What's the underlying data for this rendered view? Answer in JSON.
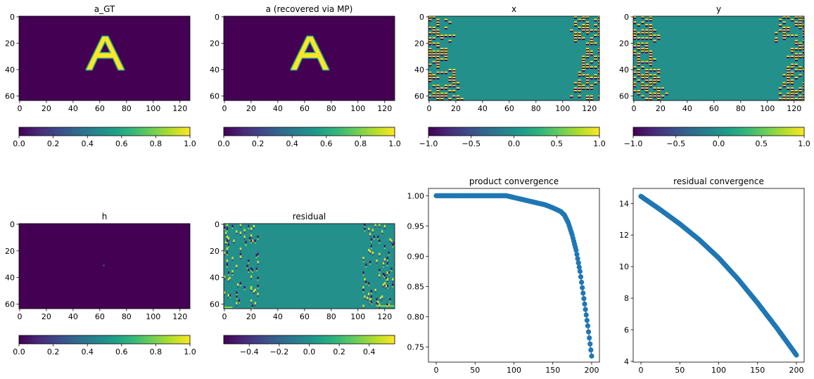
{
  "colors": {
    "viridis": [
      "#440154",
      "#482878",
      "#3e4989",
      "#31688e",
      "#26828e",
      "#1f9e89",
      "#35b779",
      "#6ece58",
      "#b5de2b",
      "#fde725"
    ],
    "series": "#1f77b4"
  },
  "chart_data": [
    {
      "id": "a_gt",
      "type": "heatmap",
      "title": "a_GT",
      "image": "letter_A",
      "xlim": [
        0,
        127
      ],
      "ylim": [
        63,
        0
      ],
      "xticks": [
        "0",
        "20",
        "40",
        "60",
        "80",
        "100",
        "120"
      ],
      "yticks": [
        "0",
        "20",
        "40",
        "60"
      ],
      "colorbar": {
        "range": [
          0,
          1
        ],
        "ticks": [
          "0.0",
          "0.2",
          "0.4",
          "0.6",
          "0.8",
          "1.0"
        ]
      }
    },
    {
      "id": "a_rec",
      "type": "heatmap",
      "title": "a (recovered via MP)",
      "image": "letter_A",
      "xlim": [
        0,
        127
      ],
      "ylim": [
        63,
        0
      ],
      "xticks": [
        "0",
        "20",
        "40",
        "60",
        "80",
        "100",
        "120"
      ],
      "yticks": [
        "0",
        "20",
        "40",
        "60"
      ],
      "colorbar": {
        "range": [
          0,
          1
        ],
        "ticks": [
          "0.0",
          "0.2",
          "0.4",
          "0.6",
          "0.8",
          "1.0"
        ]
      }
    },
    {
      "id": "x",
      "type": "heatmap",
      "title": "x",
      "image": "edge_stripes",
      "xlim": [
        0,
        127
      ],
      "ylim": [
        63,
        0
      ],
      "xticks": [
        "0",
        "20",
        "40",
        "60",
        "80",
        "100",
        "120"
      ],
      "yticks": [
        "0",
        "20",
        "40",
        "60"
      ],
      "colorbar": {
        "range": [
          -1,
          1
        ],
        "ticks": [
          "−1.0",
          "−0.5",
          "0.0",
          "0.5",
          "1.0"
        ]
      }
    },
    {
      "id": "y",
      "type": "heatmap",
      "title": "y",
      "image": "edge_stripes",
      "xlim": [
        0,
        127
      ],
      "ylim": [
        63,
        0
      ],
      "xticks": [
        "0",
        "20",
        "40",
        "60",
        "80",
        "100",
        "120"
      ],
      "yticks": [
        "0",
        "20",
        "40",
        "60"
      ],
      "colorbar": {
        "range": [
          -1,
          1
        ],
        "ticks": [
          "−1.0",
          "−0.5",
          "0.0",
          "0.5",
          "1.0"
        ]
      }
    },
    {
      "id": "h",
      "type": "heatmap",
      "title": "h",
      "image": "single_point",
      "point": [
        63,
        31
      ],
      "xlim": [
        0,
        127
      ],
      "ylim": [
        63,
        0
      ],
      "xticks": [
        "0",
        "20",
        "40",
        "60",
        "80",
        "100",
        "120"
      ],
      "yticks": [
        "0",
        "20",
        "40",
        "60"
      ],
      "colorbar": {
        "range": [
          0,
          1
        ],
        "ticks": [
          "0.0",
          "0.2",
          "0.4",
          "0.6",
          "0.8",
          "1.0"
        ]
      }
    },
    {
      "id": "residual",
      "type": "heatmap",
      "title": "residual",
      "image": "residual_dots",
      "xlim": [
        0,
        127
      ],
      "ylim": [
        63,
        0
      ],
      "xticks": [
        "0",
        "20",
        "40",
        "60",
        "80",
        "100",
        "120"
      ],
      "yticks": [
        "0",
        "20",
        "40",
        "60"
      ],
      "colorbar": {
        "range": [
          -0.57,
          0.57
        ],
        "ticks": [
          "−0.4",
          "−0.2",
          "0.0",
          "0.2",
          "0.4"
        ],
        "tick_values": [
          -0.4,
          -0.2,
          0,
          0.2,
          0.4
        ]
      }
    },
    {
      "id": "product",
      "type": "line",
      "title": "product convergence",
      "markers": true,
      "xlim": [
        -10,
        210
      ],
      "ylim": [
        0.725,
        1.012
      ],
      "xticks": [
        "0",
        "50",
        "100",
        "150",
        "200"
      ],
      "xtick_values": [
        0,
        50,
        100,
        150,
        200
      ],
      "yticks": [
        "0.75",
        "0.80",
        "0.85",
        "0.90",
        "0.95",
        "1.00"
      ],
      "ytick_values": [
        0.75,
        0.8,
        0.85,
        0.9,
        0.95,
        1.0
      ],
      "x_range": [
        0,
        200
      ],
      "points": [
        [
          0,
          1.0
        ],
        [
          90,
          1.0
        ],
        [
          100,
          0.997
        ],
        [
          110,
          0.994
        ],
        [
          120,
          0.991
        ],
        [
          130,
          0.988
        ],
        [
          140,
          0.985
        ],
        [
          150,
          0.98
        ],
        [
          155,
          0.977
        ],
        [
          160,
          0.974
        ],
        [
          165,
          0.968
        ],
        [
          170,
          0.955
        ],
        [
          175,
          0.935
        ],
        [
          180,
          0.91
        ],
        [
          185,
          0.875
        ],
        [
          190,
          0.83
        ],
        [
          195,
          0.785
        ],
        [
          200,
          0.735
        ]
      ]
    },
    {
      "id": "residual_conv",
      "type": "line",
      "title": "residual convergence",
      "markers": true,
      "xlim": [
        -10,
        210
      ],
      "ylim": [
        3.95,
        14.95
      ],
      "xticks": [
        "0",
        "50",
        "100",
        "150",
        "200"
      ],
      "xtick_values": [
        0,
        50,
        100,
        150,
        200
      ],
      "yticks": [
        "4",
        "6",
        "8",
        "10",
        "12",
        "14"
      ],
      "ytick_values": [
        4,
        6,
        8,
        10,
        12,
        14
      ],
      "x_range": [
        0,
        200
      ],
      "points": [
        [
          0,
          14.45
        ],
        [
          25,
          13.6
        ],
        [
          50,
          12.7
        ],
        [
          75,
          11.7
        ],
        [
          100,
          10.55
        ],
        [
          125,
          9.2
        ],
        [
          150,
          7.7
        ],
        [
          175,
          6.1
        ],
        [
          200,
          4.4
        ]
      ]
    }
  ]
}
